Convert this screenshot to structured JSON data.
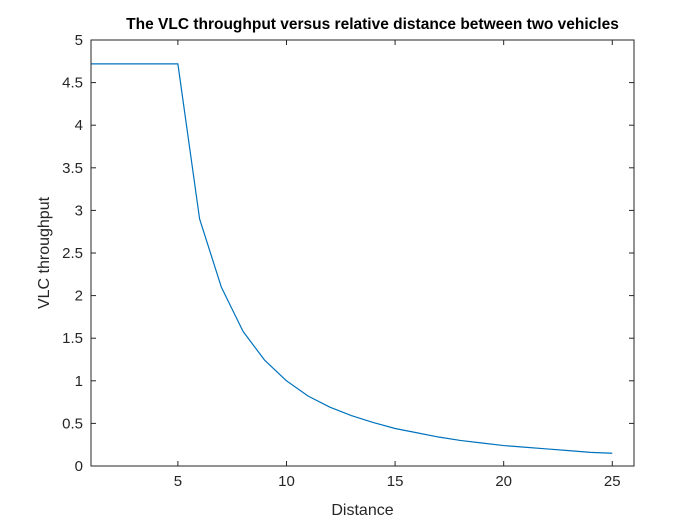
{
  "chart_data": {
    "type": "line",
    "title": "The VLC throughput versus relative distance between two vehicles",
    "xlabel": "Distance",
    "ylabel": "VLC throughput",
    "xlim": [
      1,
      26
    ],
    "ylim": [
      0,
      5
    ],
    "xticks": [
      5,
      10,
      15,
      20,
      25
    ],
    "xtick_labels": [
      "5",
      "10",
      "15",
      "20",
      "25"
    ],
    "yticks": [
      0,
      0.5,
      1,
      1.5,
      2,
      2.5,
      3,
      3.5,
      4,
      4.5,
      5
    ],
    "ytick_labels": [
      "0",
      "0.5",
      "1",
      "1.5",
      "2",
      "2.5",
      "3",
      "3.5",
      "4",
      "4.5",
      "5"
    ],
    "grid": false,
    "series": [
      {
        "color": "#0072bd",
        "x": [
          1,
          2,
          3,
          4,
          5,
          6,
          7,
          8,
          9,
          10,
          11,
          12,
          13,
          14,
          15,
          16,
          17,
          18,
          19,
          20,
          21,
          22,
          23,
          24,
          25
        ],
        "y": [
          4.72,
          4.72,
          4.72,
          4.72,
          4.72,
          2.9,
          2.1,
          1.58,
          1.24,
          1.0,
          0.82,
          0.69,
          0.59,
          0.51,
          0.44,
          0.39,
          0.34,
          0.3,
          0.27,
          0.24,
          0.22,
          0.2,
          0.18,
          0.16,
          0.15
        ]
      }
    ]
  }
}
